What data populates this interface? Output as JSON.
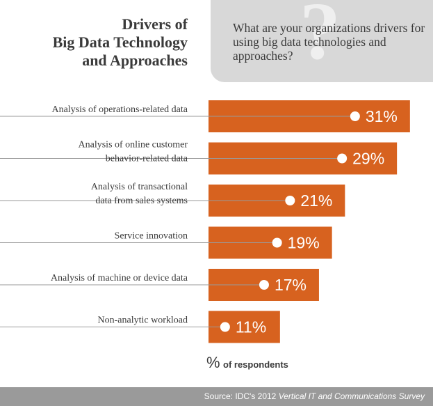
{
  "title_lines": [
    "Drivers of",
    "Big Data Technology",
    "and Approaches"
  ],
  "question_mark": "?",
  "question": "What are your organizations drivers for using big data technologies and approaches?",
  "axis_note": {
    "symbol": "%",
    "text": "of respondents"
  },
  "source": {
    "prefix": "Source: IDC's 2012 ",
    "italic": "Vertical IT and Communications Survey"
  },
  "colors": {
    "bar": "#d7621f",
    "footer": "#9a9a9a",
    "question_box": "#d8d8d8",
    "text": "#3a3a3a"
  },
  "chart_data": {
    "type": "bar",
    "orientation": "horizontal",
    "categories": [
      [
        "Analysis of operations-related data"
      ],
      [
        "Analysis of online customer",
        "behavior-related data"
      ],
      [
        "Analysis of transactional",
        "data from sales systems"
      ],
      [
        "Service innovation"
      ],
      [
        "Analysis of machine or device data"
      ],
      [
        "Non-analytic workload"
      ]
    ],
    "values": [
      31,
      29,
      21,
      19,
      17,
      11
    ],
    "value_labels": [
      "31%",
      "29%",
      "21%",
      "19%",
      "17%",
      "11%"
    ],
    "unit": "%"
  }
}
